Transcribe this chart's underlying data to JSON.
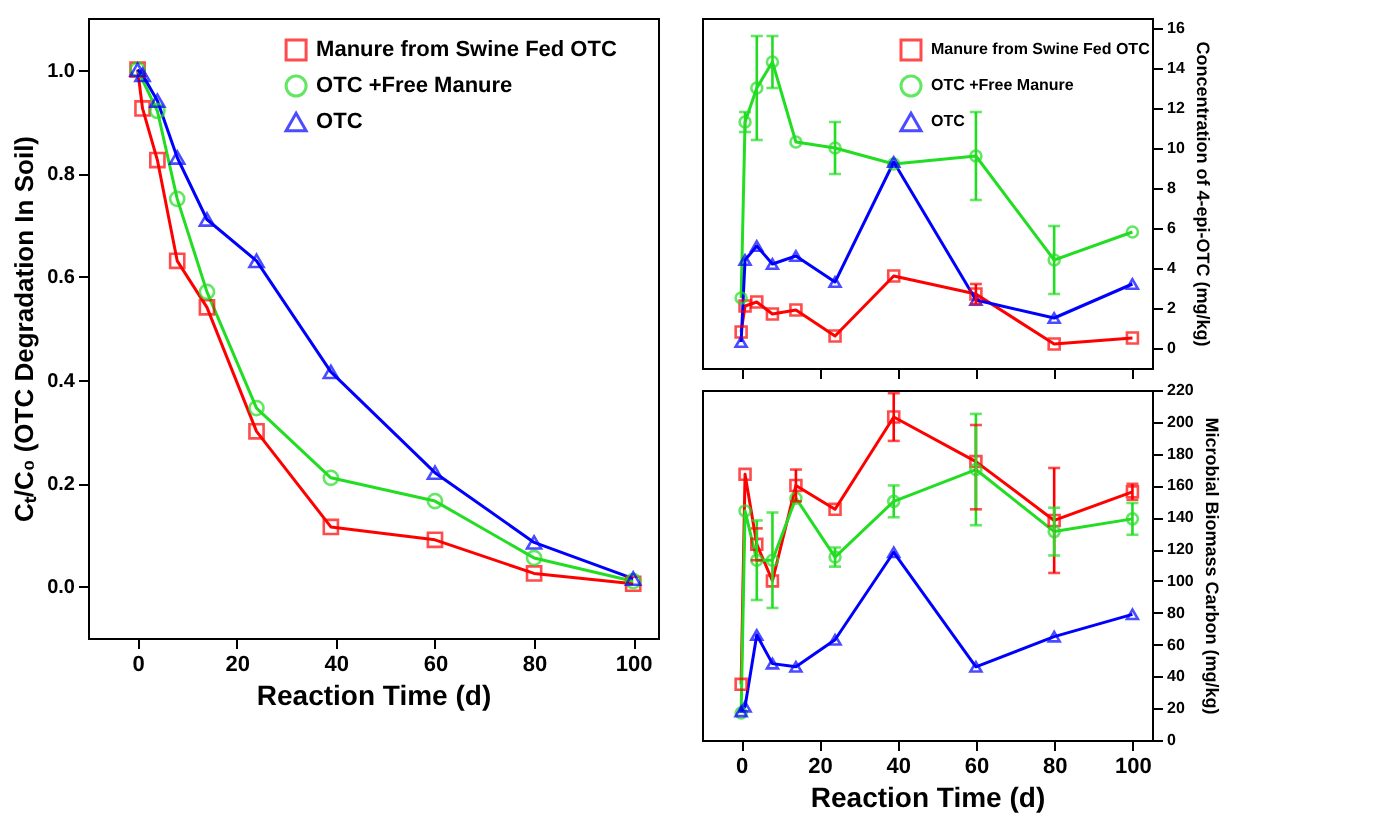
{
  "chart_data": [
    {
      "type": "line",
      "xlabel": "Reaction Time (d)",
      "ylabel": "Cₜ/C₀ (OTC Degradation In Soil)",
      "xlim": [
        -10,
        105
      ],
      "xticks": [
        0,
        20,
        40,
        60,
        80,
        100
      ],
      "ylim": [
        -0.1,
        1.1
      ],
      "yticks": [
        {
          "value": 0,
          "label": "0.0"
        },
        {
          "value": 0.2,
          "label": "0.2"
        },
        {
          "value": 0.4,
          "label": "0.4"
        },
        {
          "value": 0.6,
          "label": "0.6"
        },
        {
          "value": 0.8,
          "label": "0.8"
        },
        {
          "value": 1,
          "label": "1.0"
        }
      ],
      "grid": false,
      "legend": "top right",
      "series": [
        {
          "name": "Manure  from Swine Fed OTC",
          "color": "#ff0000",
          "marker": "square",
          "x": [
            0,
            1,
            4,
            8,
            14,
            24,
            39,
            60,
            80,
            100
          ],
          "values": [
            1.0,
            0.925,
            0.825,
            0.63,
            0.54,
            0.3,
            0.115,
            0.09,
            0.025,
            0.005
          ]
        },
        {
          "name": "OTC +Free Manure",
          "color": "#22dd22",
          "marker": "circle",
          "x": [
            0,
            4,
            8,
            14,
            24,
            39,
            60,
            80,
            100
          ],
          "values": [
            1.0,
            0.92,
            0.75,
            0.57,
            0.345,
            0.21,
            0.165,
            0.055,
            0.01
          ]
        },
        {
          "name": "OTC",
          "color": "#0000ff",
          "marker": "triangle",
          "x": [
            0,
            1,
            4,
            8,
            14,
            24,
            39,
            60,
            80,
            100
          ],
          "values": [
            1.0,
            0.99,
            0.94,
            0.83,
            0.71,
            0.63,
            0.415,
            0.22,
            0.085,
            0.015
          ]
        }
      ]
    },
    {
      "type": "line",
      "ylabel": "Concentration of 4-epi-OTC (mg/kg)",
      "xlim": [
        -10,
        105
      ],
      "xticks": [
        0,
        20,
        40,
        60,
        80,
        100
      ],
      "ylim": [
        -1,
        16.5
      ],
      "yticks": [
        0,
        2,
        4,
        6,
        8,
        10,
        12,
        14,
        16
      ],
      "tick_labels": "y",
      "grid": false,
      "legend": "top right",
      "series": [
        {
          "name": "Manure  from Swine Fed OTC",
          "color": "#ff0000",
          "marker": "square",
          "x": [
            0,
            1,
            4,
            8,
            14,
            24,
            39,
            60,
            80,
            100
          ],
          "values": [
            0.8,
            2.1,
            2.3,
            1.7,
            1.9,
            0.6,
            3.6,
            2.7,
            0.2,
            0.5
          ],
          "errors": [
            null,
            null,
            null,
            null,
            null,
            null,
            null,
            0.5,
            null,
            null
          ]
        },
        {
          "name": "OTC +Free Manure",
          "color": "#22dd22",
          "marker": "circle",
          "x": [
            0,
            1,
            4,
            8,
            14,
            24,
            39,
            60,
            80,
            100
          ],
          "values": [
            2.5,
            11.3,
            13.0,
            14.3,
            10.3,
            10.0,
            9.2,
            9.6,
            4.4,
            5.8
          ],
          "errors": [
            null,
            0.5,
            2.6,
            1.3,
            null,
            1.3,
            null,
            2.2,
            1.7,
            null
          ]
        },
        {
          "name": "OTC",
          "color": "#0000ff",
          "marker": "triangle",
          "x": [
            0,
            1,
            4,
            8,
            14,
            24,
            39,
            60,
            80,
            100
          ],
          "values": [
            0.3,
            4.4,
            5.1,
            4.2,
            4.6,
            3.3,
            9.3,
            2.4,
            1.5,
            3.2
          ]
        }
      ]
    },
    {
      "type": "line",
      "xlabel": "Reaction Time (d)",
      "ylabel": "Microbial Biomass Carbon (mg/kg)",
      "xlim": [
        -10,
        105
      ],
      "xticks": [
        0,
        20,
        40,
        60,
        80,
        100
      ],
      "ylim": [
        0,
        220
      ],
      "yticks": [
        0,
        20,
        40,
        60,
        80,
        100,
        120,
        140,
        160,
        180,
        200,
        220
      ],
      "grid": false,
      "series": [
        {
          "color": "#ff0000",
          "marker": "square",
          "x": [
            0,
            1,
            4,
            8,
            14,
            24,
            39,
            60,
            80,
            100
          ],
          "values": [
            35,
            167,
            123,
            100,
            160,
            145,
            203,
            175,
            138,
            156
          ],
          "errors": [
            null,
            null,
            10,
            null,
            10,
            null,
            15,
            [
              145,
              198
            ],
            33,
            5
          ]
        },
        {
          "color": "#22dd22",
          "marker": "circle",
          "x": [
            0,
            1,
            4,
            8,
            14,
            24,
            39,
            60,
            80,
            100
          ],
          "values": [
            17,
            144,
            113,
            113,
            152,
            115,
            150,
            170,
            131,
            139
          ],
          "errors": [
            null,
            null,
            25,
            30,
            null,
            6,
            10,
            35,
            15,
            10
          ]
        },
        {
          "color": "#0000ff",
          "marker": "triangle",
          "x": [
            0,
            1,
            4,
            8,
            14,
            24,
            39,
            60,
            80,
            100
          ],
          "values": [
            18,
            21,
            66,
            48,
            46,
            63,
            118,
            46,
            65,
            79
          ]
        }
      ]
    }
  ]
}
